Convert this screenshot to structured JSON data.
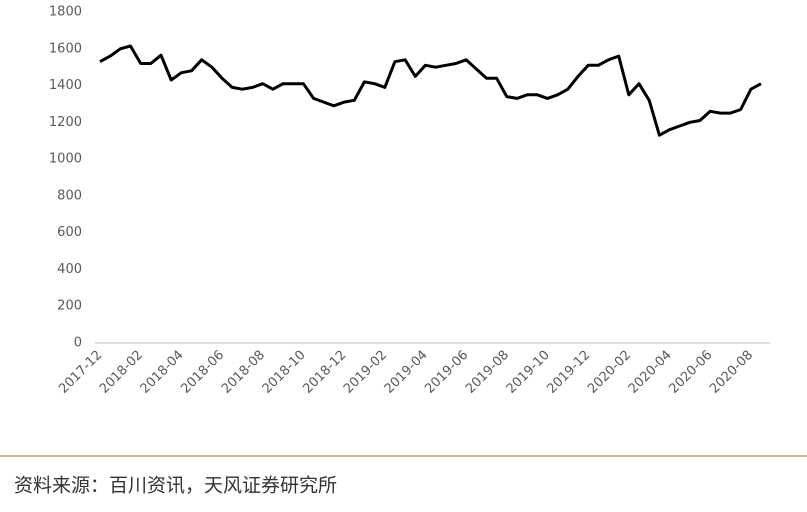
{
  "chart_data": {
    "type": "line",
    "categories": [
      "2017-12",
      null,
      null,
      null,
      "2018-02",
      null,
      null,
      null,
      "2018-04",
      null,
      null,
      null,
      "2018-06",
      null,
      null,
      null,
      "2018-08",
      null,
      null,
      null,
      "2018-10",
      null,
      null,
      null,
      "2018-12",
      null,
      null,
      null,
      "2019-02",
      null,
      null,
      null,
      "2019-04",
      null,
      null,
      null,
      "2019-06",
      null,
      null,
      null,
      "2019-08",
      null,
      null,
      null,
      "2019-10",
      null,
      null,
      null,
      "2019-12",
      null,
      null,
      null,
      "2020-02",
      null,
      null,
      null,
      "2020-04",
      null,
      null,
      null,
      "2020-06",
      null,
      null,
      null,
      "2020-08",
      null
    ],
    "values": [
      1530,
      1560,
      1600,
      1615,
      1520,
      1520,
      1565,
      1430,
      1470,
      1480,
      1540,
      1500,
      1440,
      1390,
      1380,
      1390,
      1410,
      1380,
      1410,
      1410,
      1410,
      1330,
      1310,
      1290,
      1310,
      1320,
      1420,
      1410,
      1390,
      1530,
      1540,
      1450,
      1510,
      1500,
      1510,
      1520,
      1540,
      1490,
      1440,
      1440,
      1340,
      1330,
      1350,
      1350,
      1330,
      1350,
      1380,
      1450,
      1510,
      1510,
      1540,
      1560,
      1350,
      1410,
      1320,
      1130,
      1160,
      1180,
      1200,
      1210,
      1260,
      1250,
      1250,
      1270,
      1380,
      1410
    ],
    "color": "#000000",
    "ylim": [
      0,
      1800
    ],
    "yticks": [
      0,
      200,
      400,
      600,
      800,
      1000,
      1200,
      1400,
      1600,
      1800
    ],
    "grid": false,
    "source": "资料来源：百川资讯，天风证券研究所"
  }
}
